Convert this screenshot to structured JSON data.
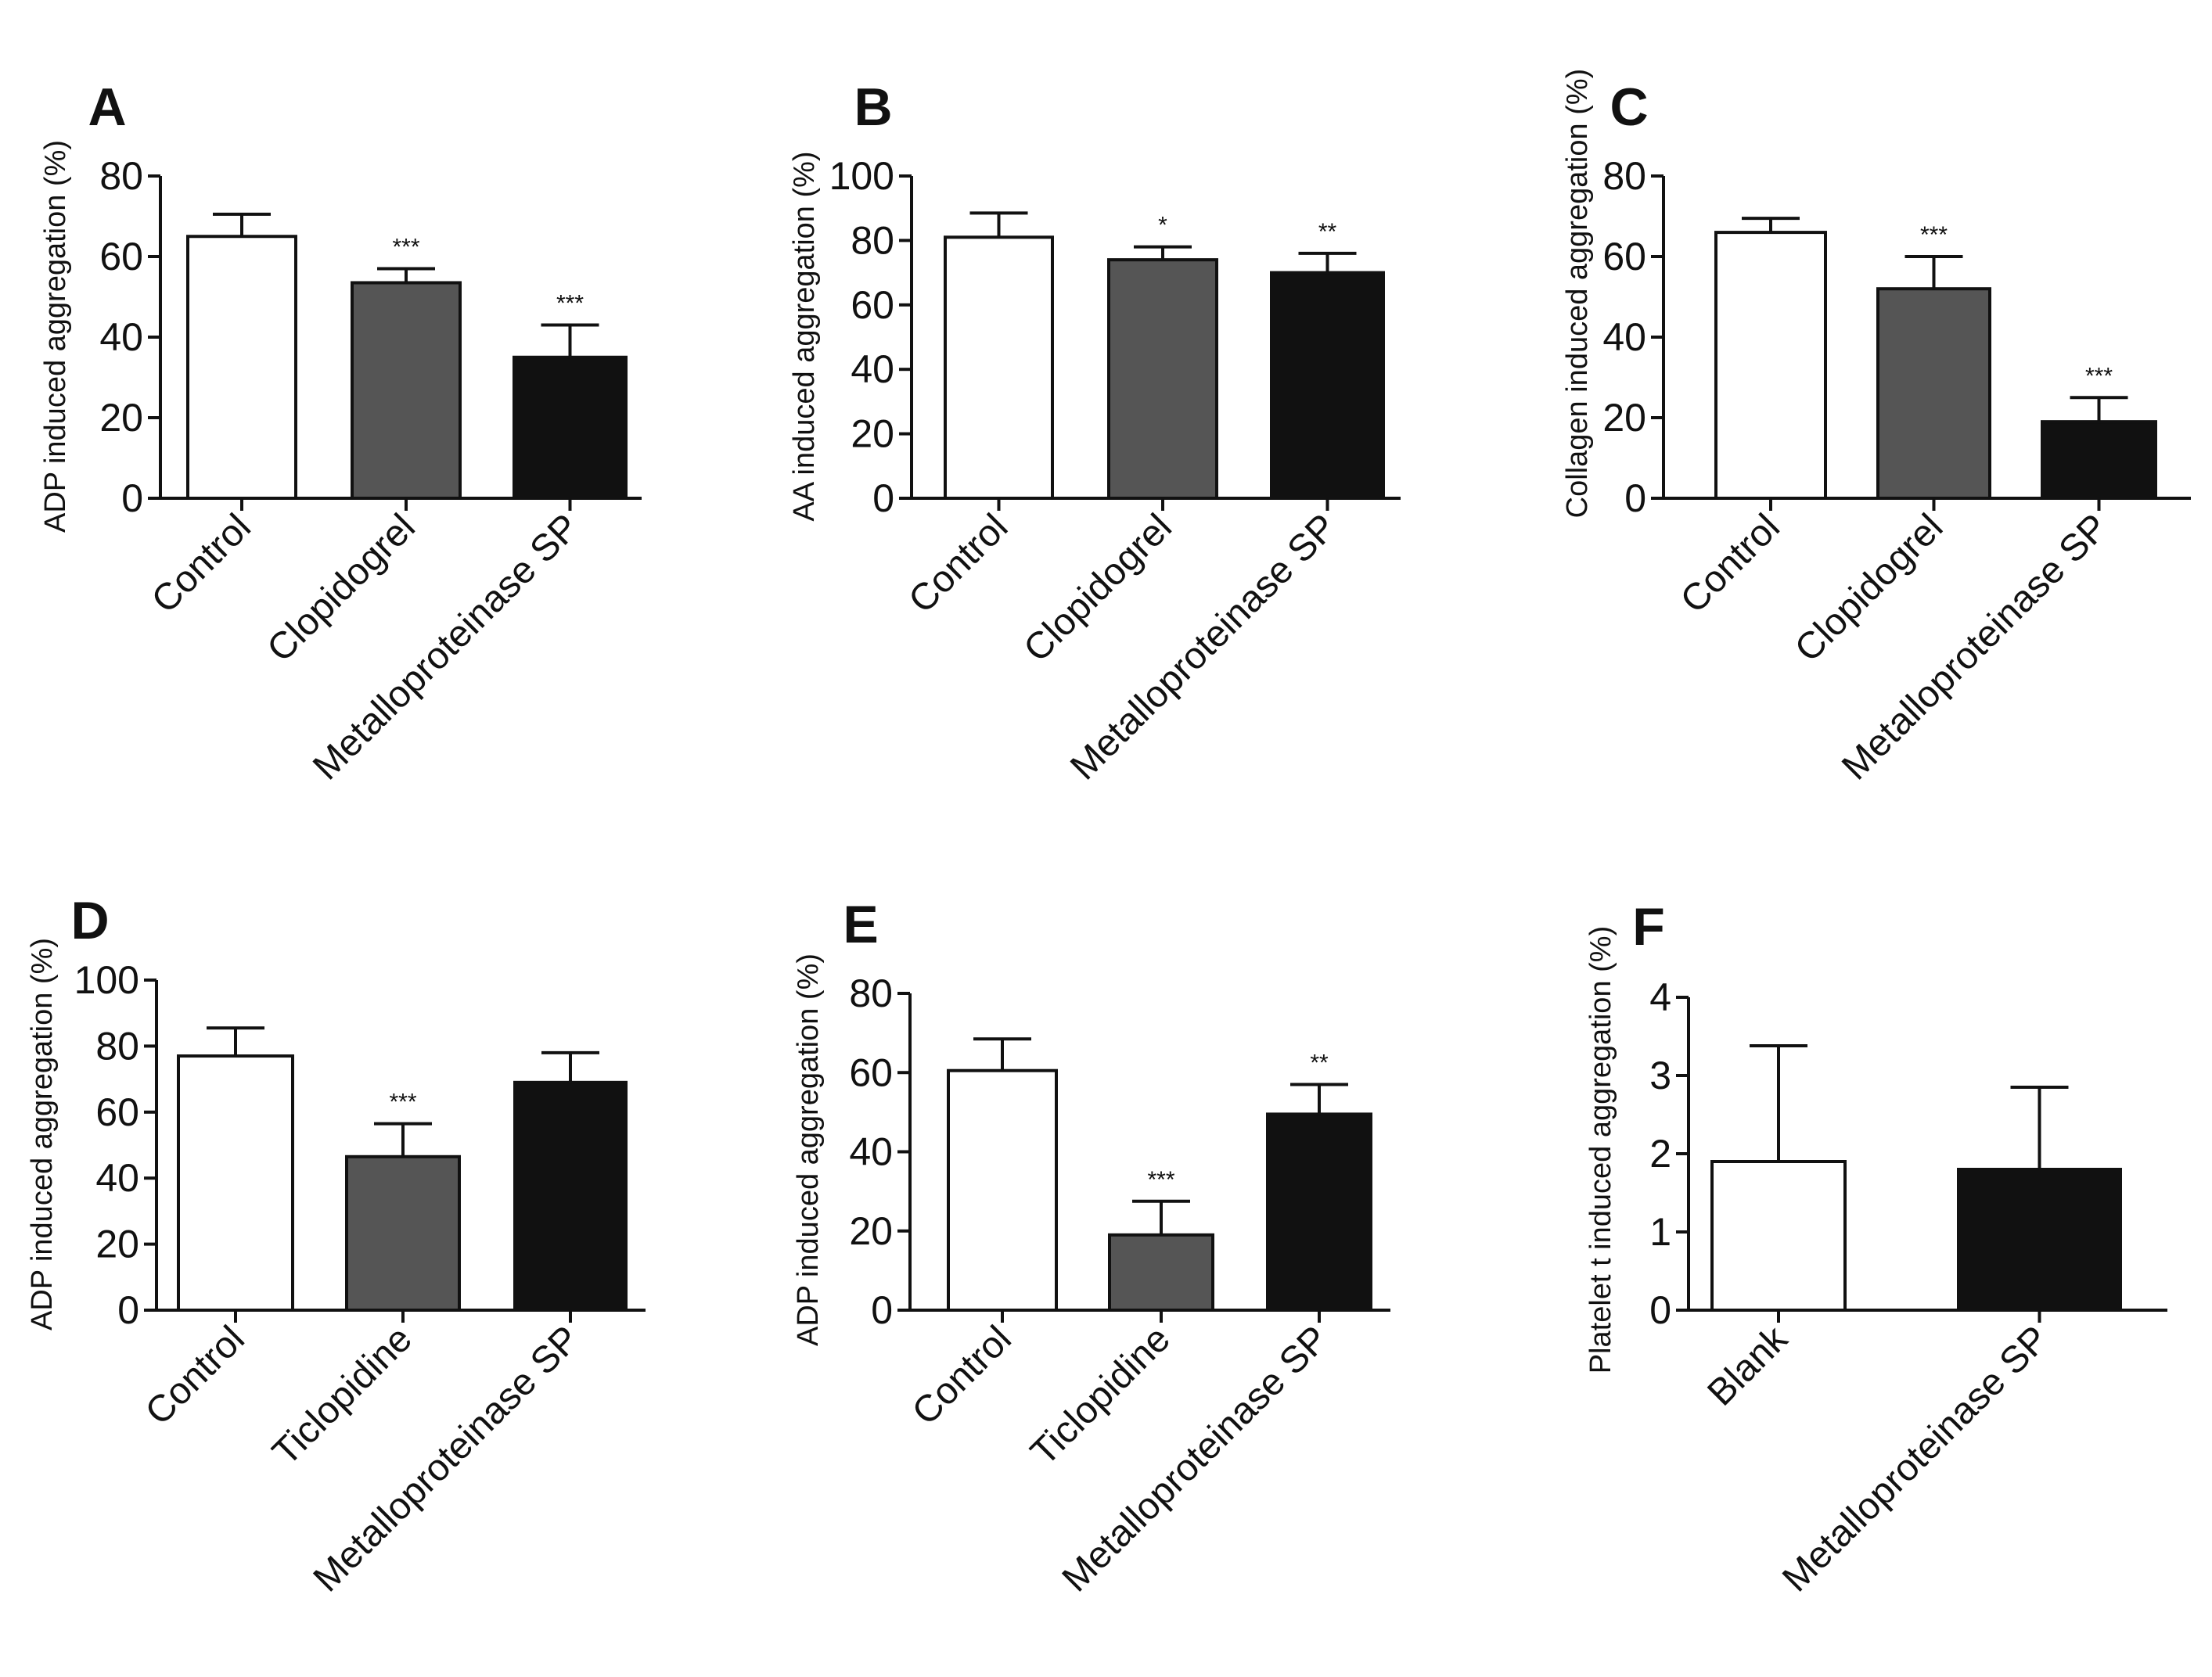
{
  "chart_data": [
    {
      "panel": "A",
      "type": "bar",
      "ylabel": "ADP induced aggregation (%)",
      "ylim": [
        0,
        80
      ],
      "yticks": [
        "0",
        "20",
        "40",
        "60",
        "80"
      ],
      "categories": [
        "Control",
        "Clopidogrel",
        "Metalloproteinase SP"
      ],
      "values": [
        65,
        53.5,
        35
      ],
      "errors": [
        5.5,
        3.5,
        8
      ],
      "significance": [
        "",
        "***",
        "***"
      ],
      "colors": [
        "#ffffff",
        "#555555",
        "#111111"
      ]
    },
    {
      "panel": "B",
      "type": "bar",
      "ylabel": "AA induced aggregation (%)",
      "ylim": [
        0,
        100
      ],
      "yticks": [
        "0",
        "20",
        "40",
        "60",
        "80",
        "100"
      ],
      "categories": [
        "Control",
        "Clopidogrel",
        "Metalloproteinase SP"
      ],
      "values": [
        81,
        74,
        70
      ],
      "errors": [
        7.5,
        4,
        6
      ],
      "significance": [
        "",
        "*",
        "**"
      ],
      "colors": [
        "#ffffff",
        "#555555",
        "#111111"
      ]
    },
    {
      "panel": "C",
      "type": "bar",
      "ylabel": "Collagen induced aggregation (%)",
      "ylim": [
        0,
        80
      ],
      "yticks": [
        "0",
        "20",
        "40",
        "60",
        "80"
      ],
      "categories": [
        "Control",
        "Clopidogrel",
        "Metalloproteinase SP"
      ],
      "values": [
        66,
        52,
        19
      ],
      "errors": [
        3.5,
        8,
        6
      ],
      "significance": [
        "",
        "***",
        "***"
      ],
      "colors": [
        "#ffffff",
        "#555555",
        "#111111"
      ]
    },
    {
      "panel": "D",
      "type": "bar",
      "ylabel": "ADP induced aggregation (%)",
      "ylim": [
        0,
        100
      ],
      "yticks": [
        "0",
        "20",
        "40",
        "60",
        "80",
        "100"
      ],
      "categories": [
        "Control",
        "Ticlopidine",
        "Metalloproteinase SP"
      ],
      "values": [
        77,
        46.5,
        69
      ],
      "errors": [
        8.5,
        10,
        9
      ],
      "significance": [
        "",
        "***",
        ""
      ],
      "colors": [
        "#ffffff",
        "#555555",
        "#111111"
      ]
    },
    {
      "panel": "E",
      "type": "bar",
      "ylabel": "ADP induced aggregation (%)",
      "ylim": [
        0,
        80
      ],
      "yticks": [
        "0",
        "20",
        "40",
        "60",
        "80"
      ],
      "categories": [
        "Control",
        "Ticlopidine",
        "Metalloproteinase SP"
      ],
      "values": [
        60.5,
        19,
        49.5
      ],
      "errors": [
        8,
        8.5,
        7.5
      ],
      "significance": [
        "",
        "***",
        "**"
      ],
      "colors": [
        "#ffffff",
        "#555555",
        "#111111"
      ]
    },
    {
      "panel": "F",
      "type": "bar",
      "ylabel": "Platelet t induced aggregation (%)",
      "ylim": [
        0,
        4
      ],
      "yticks": [
        "0",
        "1",
        "2",
        "3",
        "4"
      ],
      "categories": [
        "Blank",
        "Metalloproteinase SP"
      ],
      "values": [
        1.9,
        1.8
      ],
      "errors": [
        1.48,
        1.05
      ],
      "significance": [
        "",
        ""
      ],
      "colors": [
        "#ffffff",
        "#111111"
      ]
    }
  ]
}
